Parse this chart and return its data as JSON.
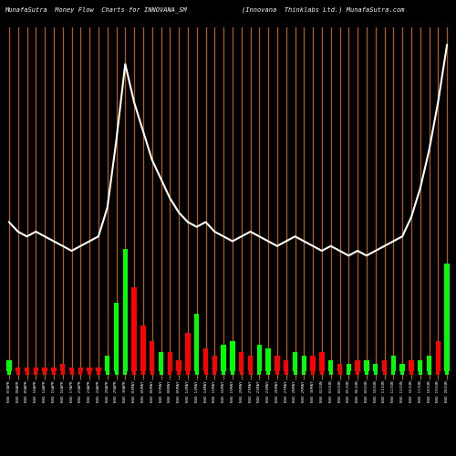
{
  "title_left": "MunafaSutra  Money Flow  Charts for INNOVANA_SM",
  "title_right": "(Innovana  Thinklabs Ltd.) MunafaSutra.com",
  "bg_color": "#000000",
  "line_color": "#ffffff",
  "bar_color_pos": "#00ff00",
  "bar_color_neg": "#ff0000",
  "vline_color": "#b85c00",
  "dot_color_pos": "#00ff00",
  "dot_color_neg": "#ff0000",
  "n_bars": 50,
  "price_line": [
    55,
    53,
    52,
    53,
    52,
    51,
    50,
    49,
    50,
    51,
    52,
    58,
    72,
    88,
    80,
    74,
    68,
    64,
    60,
    57,
    55,
    54,
    55,
    53,
    52,
    51,
    52,
    53,
    52,
    51,
    50,
    51,
    52,
    51,
    50,
    49,
    50,
    49,
    48,
    49,
    48,
    49,
    50,
    51,
    52,
    56,
    62,
    70,
    80,
    92
  ],
  "bar_values": [
    3,
    -1,
    -1,
    -1,
    -1,
    -1,
    -2,
    -1,
    -1,
    -1,
    -1,
    4,
    18,
    32,
    -22,
    -12,
    -8,
    5,
    -5,
    -3,
    -10,
    15,
    -6,
    -4,
    7,
    8,
    -5,
    -4,
    7,
    6,
    -4,
    -3,
    5,
    4,
    -4,
    -5,
    3,
    -2,
    2,
    -3,
    3,
    2,
    -3,
    4,
    2,
    -3,
    3,
    4,
    -8,
    28
  ],
  "dot_values": [
    1,
    -1,
    -1,
    -1,
    -1,
    -1,
    -1,
    -1,
    -1,
    -1,
    -1,
    1,
    1,
    1,
    -1,
    -1,
    -1,
    1,
    -1,
    -1,
    -1,
    1,
    -1,
    -1,
    1,
    1,
    -1,
    -1,
    1,
    1,
    -1,
    -1,
    1,
    1,
    -1,
    -1,
    1,
    -1,
    1,
    -1,
    1,
    1,
    -1,
    1,
    1,
    -1,
    1,
    1,
    -1,
    1
  ],
  "xlabels": [
    "NSE 07APR",
    "NSE 08APR",
    "NSE 09APR",
    "NSE 10APR",
    "NSE 14APR",
    "NSE 15APR",
    "NSE 16APR",
    "NSE 17APR",
    "NSE 22APR",
    "NSE 23APR",
    "NSE 24APR",
    "NSE 28APR",
    "NSE 29APR",
    "NSE 30APR",
    "NSE 02MAY",
    "NSE 05MAY",
    "NSE 06MAY",
    "NSE 07MAY",
    "NSE 08MAY",
    "NSE 09MAY",
    "NSE 12MAY",
    "NSE 13MAY",
    "NSE 14MAY",
    "NSE 15MAY",
    "NSE 16MAY",
    "NSE 19MAY",
    "NSE 20MAY",
    "NSE 21MAY",
    "NSE 22MAY",
    "NSE 23MAY",
    "NSE 26MAY",
    "NSE 27MAY",
    "NSE 28MAY",
    "NSE 29MAY",
    "NSE 30MAY",
    "NSE 02JUN",
    "NSE 03JUN",
    "NSE 04JUN",
    "NSE 05JUN",
    "NSE 06JUN",
    "NSE 09JUN",
    "NSE 10JUN",
    "NSE 11JUN",
    "NSE 12JUN",
    "NSE 13JUN",
    "NSE 16JUN",
    "NSE 17JUN",
    "NSE 18JUN",
    "NSE 19JUN",
    "NSE 20JUN"
  ],
  "ylim_min": 0,
  "ylim_max": 100,
  "bar_area_max": 35,
  "line_area_min": 35,
  "line_area_max": 95
}
